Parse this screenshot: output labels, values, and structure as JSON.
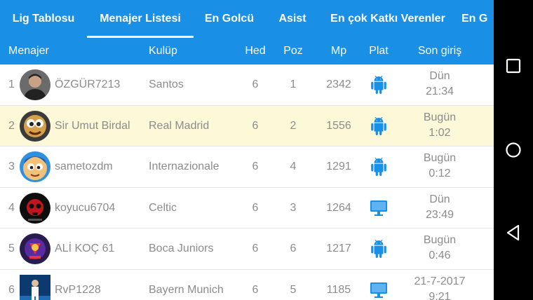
{
  "tabs": [
    {
      "label": "Lig Tablosu",
      "active": false
    },
    {
      "label": "Menajer Listesi",
      "active": true
    },
    {
      "label": "En Golcü",
      "active": false
    },
    {
      "label": "Asist",
      "active": false
    },
    {
      "label": "En çok Katkı Verenler",
      "active": false
    },
    {
      "label": "En G",
      "active": false
    }
  ],
  "columns": {
    "manager": "Menajer",
    "club": "Kulüp",
    "hed": "Hed",
    "poz": "Poz",
    "mp": "Mp",
    "plat": "Plat",
    "last": "Son giriş"
  },
  "rows": [
    {
      "rank": "1",
      "name": "ÖZGÜR7213",
      "club": "Santos",
      "hed": "6",
      "poz": "1",
      "mp": "2342",
      "platform": "android-icon",
      "last_day": "Dün",
      "last_time": "21:34",
      "avatar": "avatar-photo-icon",
      "highlighted": false
    },
    {
      "rank": "2",
      "name": "Sir Umut Birdal",
      "club": "Real Madrid",
      "hed": "6",
      "poz": "2",
      "mp": "1556",
      "platform": "android-icon",
      "last_day": "Bugün",
      "last_time": "1:02",
      "avatar": "avatar-cartoon-icon",
      "highlighted": true
    },
    {
      "rank": "3",
      "name": "sametozdm",
      "club": "Internazionale",
      "hed": "6",
      "poz": "4",
      "mp": "1291",
      "platform": "android-icon",
      "last_day": "Bugün",
      "last_time": "0:12",
      "avatar": "avatar-cartoon-icon",
      "highlighted": false
    },
    {
      "rank": "4",
      "name": "koyucu6704",
      "club": "Celtic",
      "hed": "6",
      "poz": "3",
      "mp": "1264",
      "platform": "desktop-icon",
      "last_day": "Dün",
      "last_time": "23:49",
      "avatar": "avatar-skull-icon",
      "highlighted": false
    },
    {
      "rank": "5",
      "name": "ALİ KOÇ 61",
      "club": "Boca Juniors",
      "hed": "6",
      "poz": "6",
      "mp": "1217",
      "platform": "android-icon",
      "last_day": "Bugün",
      "last_time": "0:46",
      "avatar": "avatar-badge-icon",
      "highlighted": false
    },
    {
      "rank": "6",
      "name": "RvP1228",
      "club": "Bayern Munich",
      "hed": "6",
      "poz": "5",
      "mp": "1185",
      "platform": "desktop-icon",
      "last_day": "21-7-2017",
      "last_time": "9:21",
      "avatar": "avatar-player-icon",
      "highlighted": false
    }
  ],
  "colors": {
    "accent": "#1a8fe6",
    "highlight": "#fdf8d8",
    "platform_icon": "#1a8fe6"
  },
  "navbar": [
    "recents-icon",
    "home-icon",
    "back-icon"
  ]
}
